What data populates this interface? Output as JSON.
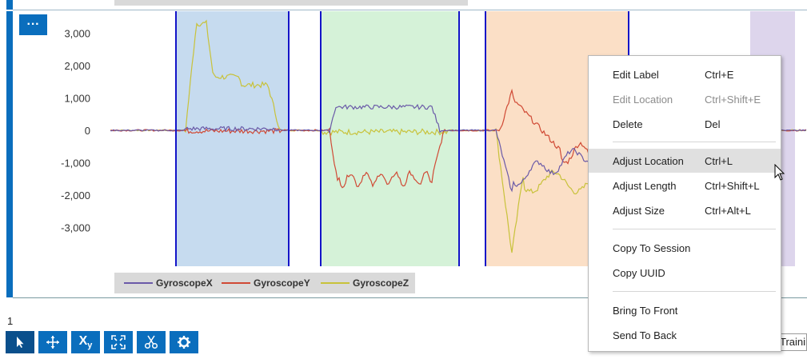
{
  "toolbar_top": {
    "more_label": "···"
  },
  "chart_data": {
    "type": "line",
    "y_ticks": [
      "3,000",
      "2,000",
      "1,000",
      "0",
      "-1,000",
      "-2,000",
      "-3,000"
    ],
    "y_tick_values": [
      3000,
      2000,
      1000,
      0,
      -1000,
      -2000,
      -3000
    ],
    "ylim": [
      -4000,
      3500
    ],
    "grid": false,
    "legend_position": "bottom-left",
    "series": [
      {
        "name": "GyroscopeX",
        "color": "#6a5aa8"
      },
      {
        "name": "GyroscopeY",
        "color": "#d04a35"
      },
      {
        "name": "GyroscopeZ",
        "color": "#c8c23a"
      }
    ],
    "label_regions": [
      {
        "color": "#c6dbef"
      },
      {
        "color": "#d5f2d8"
      },
      {
        "color": "#fbdfc6"
      },
      {
        "color": "#ddd5ec"
      }
    ],
    "marker_color": "#1414c8"
  },
  "page": {
    "number": "1"
  },
  "tools": [
    {
      "icon": "pointer-icon"
    },
    {
      "icon": "move-icon"
    },
    {
      "icon": "xy-icon",
      "label": "X",
      "sub": "y"
    },
    {
      "icon": "expand-icon"
    },
    {
      "icon": "scissors-icon"
    },
    {
      "icon": "gear-icon"
    }
  ],
  "tab": {
    "label": "Trainin"
  },
  "context_menu": {
    "items": [
      {
        "label": "Edit Label",
        "shortcut": "Ctrl+E",
        "disabled": false
      },
      {
        "label": "Edit Location",
        "shortcut": "Ctrl+Shift+E",
        "disabled": true
      },
      {
        "label": "Delete",
        "shortcut": "Del",
        "disabled": false
      },
      {
        "label": "Adjust Location",
        "shortcut": "Ctrl+L",
        "disabled": false,
        "hovered": true
      },
      {
        "label": "Adjust Length",
        "shortcut": "Ctrl+Shift+L",
        "disabled": false
      },
      {
        "label": "Adjust Size",
        "shortcut": "Ctrl+Alt+L",
        "disabled": false
      },
      {
        "label": "Copy To Session",
        "disabled": false
      },
      {
        "label": "Copy UUID",
        "disabled": false
      },
      {
        "label": "Bring To Front",
        "disabled": false
      },
      {
        "label": "Send To Back",
        "disabled": false
      }
    ]
  }
}
